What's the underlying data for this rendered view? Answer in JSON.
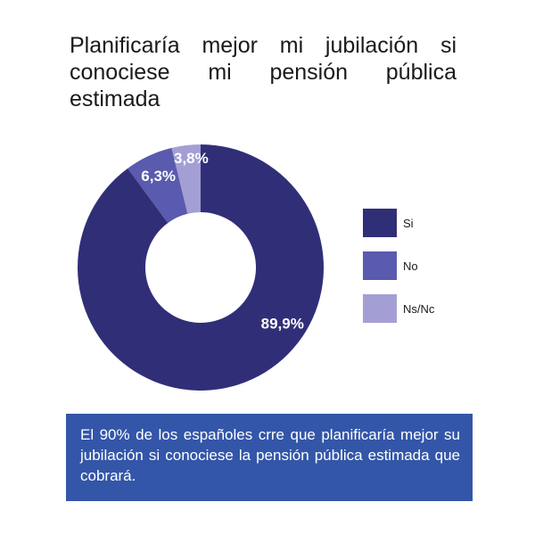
{
  "chart_data": {
    "type": "pie",
    "donut": true,
    "title": "Planificaría mejor mi jubilación si conociese mi pensión pública estimada",
    "slices": [
      {
        "label": "Si",
        "value": 89.9,
        "value_label": "89,9%",
        "color": "#312e78"
      },
      {
        "label": "No",
        "value": 6.3,
        "value_label": "6,3%",
        "color": "#5a5aae"
      },
      {
        "label": "Ns/Nc",
        "value": 3.8,
        "value_label": "3,8%",
        "color": "#a39fd4"
      }
    ],
    "legend_position": "right"
  },
  "footer": {
    "text": "El 90% de los españoles crre que planificaría mejor su jubilación si conociese la pensión pública estimada que cobrará."
  }
}
